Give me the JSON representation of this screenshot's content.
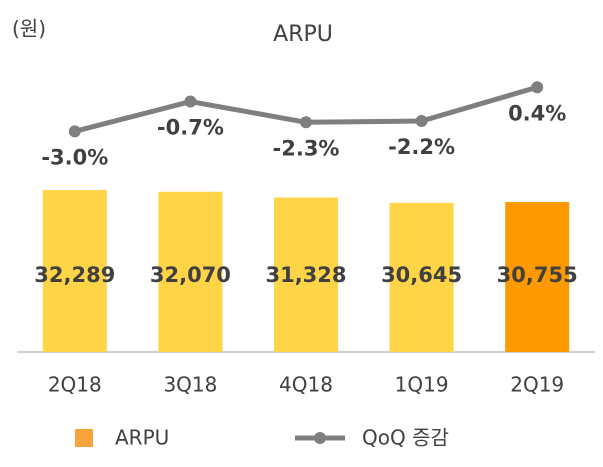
{
  "chart_data": {
    "type": "combo",
    "title": "ARPU",
    "unit_label": "(원)",
    "categories": [
      "2Q18",
      "3Q18",
      "4Q18",
      "1Q19",
      "2Q19"
    ],
    "ylim": [
      11600,
      48900
    ],
    "y2lim": [
      -20,
      2.5
    ],
    "series": [
      {
        "name": "ARPU",
        "type": "bar",
        "color": "#F7A23B",
        "colors": [
          "#FFD446",
          "#FFD446",
          "#FFD446",
          "#FFD446",
          "#FF9900"
        ],
        "values": [
          32289,
          32070,
          31328,
          30645,
          30755
        ],
        "value_labels": [
          "32,289",
          "32,070",
          "31,328",
          "30,645",
          "30,755"
        ]
      },
      {
        "name": "QoQ 증감",
        "type": "line",
        "axis": "y2",
        "color": "#7F7F7F",
        "values": [
          -3.0,
          -0.7,
          -2.3,
          -2.2,
          0.4
        ],
        "value_labels": [
          "-3.0%",
          "-0.7%",
          "-2.3%",
          "-2.2%",
          "0.4%"
        ]
      }
    ]
  }
}
